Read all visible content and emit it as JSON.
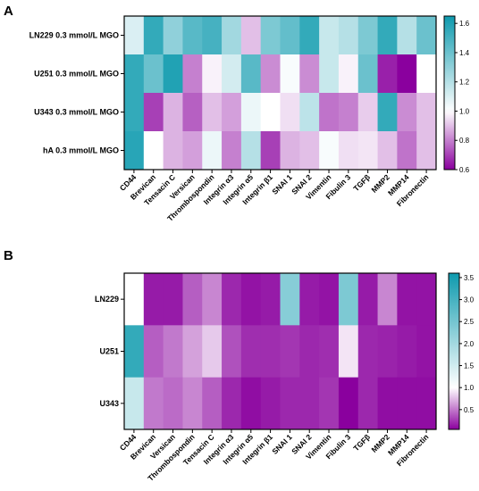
{
  "chart_data": [
    {
      "panel": "A",
      "type": "heatmap",
      "rows": [
        "LN229 0.3 mmol/L MGO",
        "U251 0.3 mmol/L MGO",
        "U343 0.3 mmol/L MGO",
        "hA 0.3 mmol/L MGO"
      ],
      "columns": [
        "CD44",
        "Brevican",
        "Tensacin C",
        "Versican",
        "Thrombospondin",
        "Integrin α3",
        "Integrin α5",
        "Integrin β1",
        "SNAI 1",
        "SNAI 2",
        "Vimentin",
        "Fibulin 3",
        "TGFβ",
        "MMP2",
        "MMP14",
        "Fibronectin"
      ],
      "values": [
        [
          1.1,
          1.55,
          1.3,
          1.45,
          1.5,
          1.25,
          0.9,
          1.35,
          1.42,
          1.55,
          1.15,
          1.2,
          1.35,
          1.55,
          1.2,
          1.4
        ],
        [
          1.55,
          1.4,
          1.6,
          0.8,
          0.98,
          1.12,
          1.45,
          0.82,
          1.02,
          0.82,
          1.15,
          0.98,
          1.4,
          0.65,
          0.6,
          1.0
        ],
        [
          1.55,
          0.7,
          0.88,
          0.75,
          0.9,
          0.85,
          1.05,
          1.0,
          0.95,
          1.18,
          0.78,
          0.8,
          0.92,
          1.55,
          0.82,
          0.9
        ],
        [
          1.58,
          1.0,
          0.88,
          0.85,
          1.05,
          0.8,
          1.2,
          0.7,
          0.88,
          0.9,
          1.02,
          0.95,
          0.96,
          0.9,
          0.78,
          0.9
        ]
      ],
      "colorbar": {
        "min": 0.6,
        "max": 1.65,
        "ticks": [
          "0.6",
          "0.8",
          "1.0",
          "1.2",
          "1.4",
          "1.6"
        ],
        "tick_values": [
          0.6,
          0.8,
          1.0,
          1.2,
          1.4,
          1.6
        ]
      },
      "colors": {
        "low": "#8a009e",
        "mid": "#ffffff",
        "high": "#0e9aae"
      }
    },
    {
      "panel": "B",
      "type": "heatmap",
      "rows": [
        "LN229",
        "U251",
        "U343"
      ],
      "columns": [
        "CD44",
        "Brevican",
        "Versican",
        "Thrombospondin",
        "Tensacin C",
        "Integrin α3",
        "Integrin α5",
        "Integrin β1",
        "SNAI 1",
        "SNAI 2",
        "Vimentin",
        "Fibulin 3",
        "TGFβ",
        "MMP2",
        "MMP14",
        "Fibronectin"
      ],
      "values": [
        [
          1.0,
          0.15,
          0.15,
          0.4,
          0.55,
          0.2,
          0.12,
          0.15,
          2.3,
          0.15,
          0.12,
          2.4,
          0.15,
          0.55,
          0.12,
          0.12
        ],
        [
          3.2,
          0.4,
          0.5,
          0.65,
          0.8,
          0.35,
          0.22,
          0.22,
          0.25,
          0.2,
          0.22,
          0.9,
          0.2,
          0.18,
          0.15,
          0.12
        ],
        [
          1.6,
          0.5,
          0.45,
          0.55,
          0.4,
          0.2,
          0.1,
          0.15,
          0.2,
          0.2,
          0.25,
          0.05,
          0.2,
          0.1,
          0.1,
          0.1
        ]
      ],
      "colorbar": {
        "min": 0.05,
        "max": 3.6,
        "ticks": [
          "0.5",
          "1.0",
          "1.5",
          "2.0",
          "2.5",
          "3.0",
          "3.5"
        ],
        "tick_values": [
          0.5,
          1.0,
          1.5,
          2.0,
          2.5,
          3.0,
          3.5
        ]
      },
      "colors": {
        "low": "#8a009e",
        "mid": "#ffffff",
        "high": "#0e9aae"
      }
    }
  ],
  "labels": {
    "panel_a": "A",
    "panel_b": "B"
  }
}
